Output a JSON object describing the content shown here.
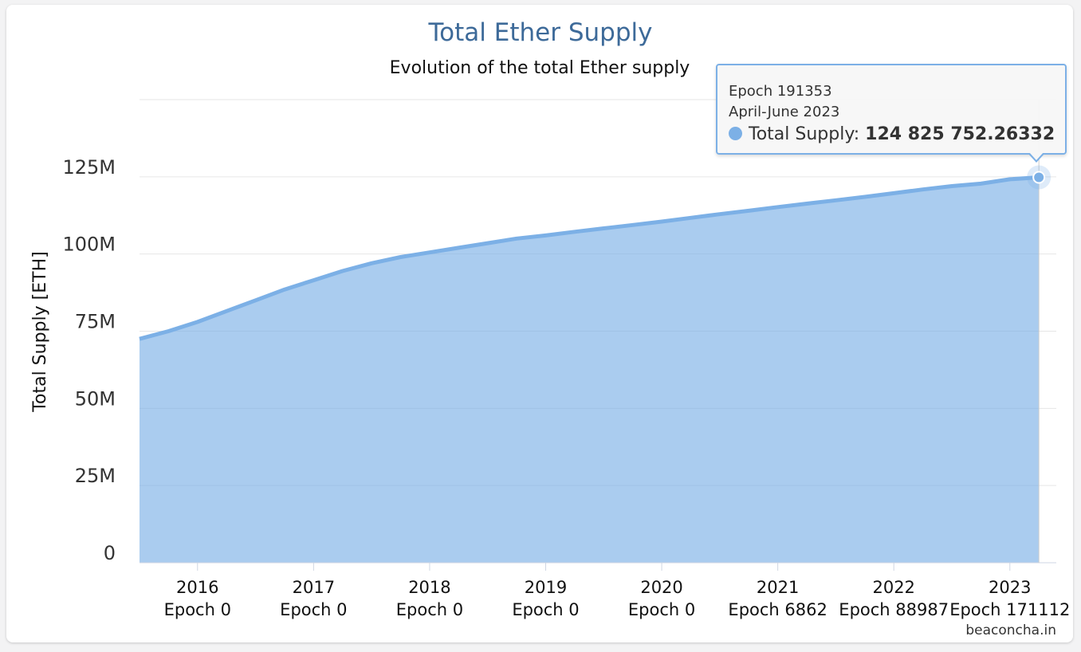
{
  "chart_data": {
    "type": "area",
    "title": "Total Ether Supply",
    "subtitle": "Evolution of the total Ether supply",
    "ylabel": "Total Supply [ETH]",
    "xlabel": "",
    "ylim": [
      0,
      150000000
    ],
    "yticks": [
      0,
      25000000,
      50000000,
      75000000,
      100000000,
      125000000
    ],
    "ytick_labels": [
      "0",
      "25M",
      "50M",
      "75M",
      "100M",
      "125M"
    ],
    "x_categories": [
      {
        "year": "2016",
        "epoch": "Epoch 0"
      },
      {
        "year": "2017",
        "epoch": "Epoch 0"
      },
      {
        "year": "2018",
        "epoch": "Epoch 0"
      },
      {
        "year": "2019",
        "epoch": "Epoch 0"
      },
      {
        "year": "2020",
        "epoch": "Epoch 0"
      },
      {
        "year": "2021",
        "epoch": "Epoch 6862"
      },
      {
        "year": "2022",
        "epoch": "Epoch 88987"
      },
      {
        "year": "2023",
        "epoch": "Epoch 171112"
      }
    ],
    "series": [
      {
        "color": "#7cb0e6",
        "x": [
          2015.5,
          2015.75,
          2016.0,
          2016.25,
          2016.5,
          2016.75,
          2017.0,
          2017.25,
          2017.5,
          2017.75,
          2018.0,
          2018.25,
          2018.5,
          2018.75,
          2019.0,
          2019.25,
          2019.5,
          2019.75,
          2020.0,
          2020.25,
          2020.5,
          2020.75,
          2021.0,
          2021.25,
          2021.5,
          2021.75,
          2022.0,
          2022.25,
          2022.5,
          2022.75,
          2023.0,
          2023.25
        ],
        "values": [
          72500000,
          75000000,
          78000000,
          81500000,
          85000000,
          88500000,
          91500000,
          94500000,
          97000000,
          99000000,
          100500000,
          102000000,
          103500000,
          105000000,
          106000000,
          107200000,
          108300000,
          109400000,
          110500000,
          111700000,
          112900000,
          114000000,
          115200000,
          116300000,
          117400000,
          118500000,
          119700000,
          120900000,
          122000000,
          122800000,
          124200000,
          124825752.26332
        ]
      }
    ]
  },
  "tooltip": {
    "epoch": "Epoch 191353",
    "period": "April-June 2023",
    "series_label": "Total Supply: ",
    "value": "124 825 752.26332"
  },
  "credit": "beaconcha.in"
}
